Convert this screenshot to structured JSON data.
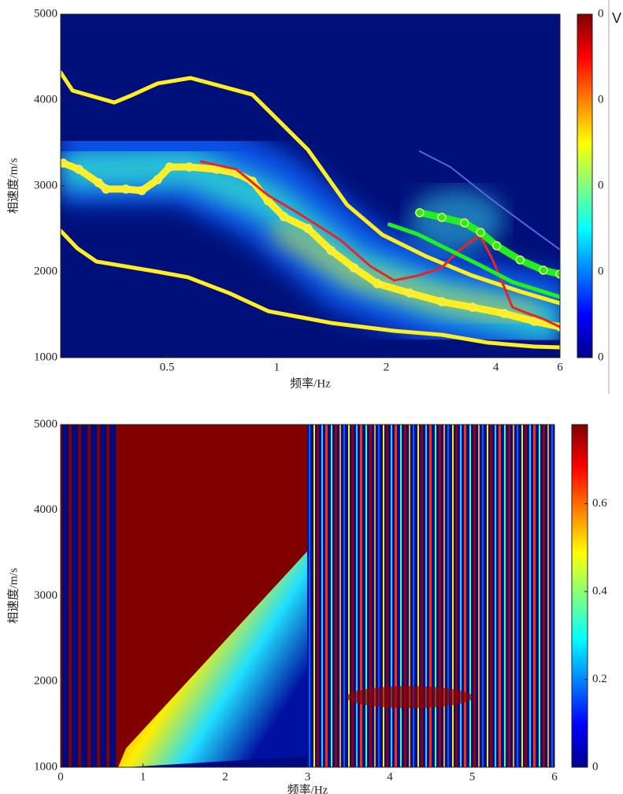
{
  "chart_data": [
    {
      "type": "line",
      "xscale": "log",
      "xlabel": "频率/Hz",
      "ylabel": "相速度/m/s",
      "xlim": [
        0.255,
        6
      ],
      "ylim": [
        1000,
        5000
      ],
      "xticks": [
        0.5,
        1,
        2,
        4,
        6
      ],
      "yticks": [
        1000,
        2000,
        3000,
        4000,
        5000
      ],
      "colorbar_title": "V",
      "colorbar_labels": [
        "0",
        "0",
        "0",
        "0",
        "0"
      ],
      "series": [
        {
          "color": "#ffee22",
          "width": 5,
          "markers": false,
          "x": [
            0.255,
            0.275,
            0.358,
            0.395,
            0.471,
            0.58,
            0.857,
            1.218,
            1.56,
            1.95,
            2.56,
            3.45,
            4.66,
            6
          ],
          "y": [
            4321,
            4110,
            3972,
            4046,
            4193,
            4257,
            4064,
            3422,
            2780,
            2431,
            2183,
            1954,
            1771,
            1633
          ]
        },
        {
          "color": "#ffee22",
          "width": 5,
          "markers": false,
          "x": [
            0.255,
            0.283,
            0.32,
            0.471,
            0.57,
            0.74,
            0.948,
            1.41,
            2.1,
            2.84,
            3.81,
            5.1,
            6
          ],
          "y": [
            2477,
            2275,
            2119,
            2000,
            1936,
            1752,
            1541,
            1404,
            1312,
            1266,
            1174,
            1128,
            1119
          ]
        },
        {
          "color": "#ffee22",
          "width": 9,
          "markers": true,
          "x": [
            0.259,
            0.286,
            0.324,
            0.34,
            0.385,
            0.426,
            0.471,
            0.508,
            0.575,
            0.684,
            0.775,
            0.857,
            0.947,
            1.046,
            1.218,
            1.41,
            1.63,
            1.89,
            2.32,
            2.84,
            3.45,
            4.22,
            5.1,
            6
          ],
          "y": [
            3266,
            3193,
            3037,
            2963,
            2963,
            2945,
            3073,
            3220,
            3220,
            3193,
            3147,
            3055,
            2826,
            2642,
            2505,
            2248,
            2046,
            1862,
            1752,
            1651,
            1587,
            1514,
            1422,
            1358
          ]
        },
        {
          "color": "#e8242a",
          "width": 3,
          "markers": false,
          "x": [
            0.62,
            0.775,
            0.947,
            1.16,
            1.5,
            1.81,
            2.1,
            2.44,
            2.84,
            3.13,
            3.45,
            3.63,
            3.92,
            4.22,
            4.44,
            4.9,
            5.4,
            6
          ],
          "y": [
            3284,
            3193,
            2890,
            2670,
            2367,
            2064,
            1899,
            1954,
            2046,
            2229,
            2367,
            2413,
            2138,
            1817,
            1587,
            1514,
            1450,
            1358
          ]
        },
        {
          "color": "#22ee22",
          "width": 9,
          "markers": true,
          "x": [
            2.47,
            2.84,
            3.28,
            3.63,
            4.02,
            4.66,
            5.4,
            6
          ],
          "y": [
            2688,
            2633,
            2569,
            2459,
            2303,
            2138,
            2018,
            1972
          ]
        },
        {
          "color": "#22ee22",
          "width": 5,
          "markers": false,
          "x": [
            2.04,
            2.43,
            3.0,
            3.63,
            4.44,
            6
          ],
          "y": [
            2550,
            2440,
            2248,
            2073,
            1881,
            1706
          ]
        },
        {
          "color": "#5566dd",
          "width": 2,
          "markers": false,
          "x": [
            2.47,
            3.0,
            3.81,
            4.66,
            6
          ],
          "y": [
            3404,
            3220,
            2872,
            2596,
            2257
          ]
        }
      ]
    },
    {
      "type": "heatmap",
      "xlabel": "频率/Hz",
      "ylabel": "相速度/m/s",
      "xlim": [
        0,
        6
      ],
      "ylim": [
        1000,
        5000
      ],
      "xticks": [
        0,
        1,
        2,
        3,
        4,
        5,
        6
      ],
      "yticks": [
        1000,
        2000,
        3000,
        4000,
        5000
      ],
      "clim": [
        0,
        0.78
      ],
      "colorbar_ticks": [
        0,
        0.2,
        0.4,
        0.6
      ]
    }
  ]
}
